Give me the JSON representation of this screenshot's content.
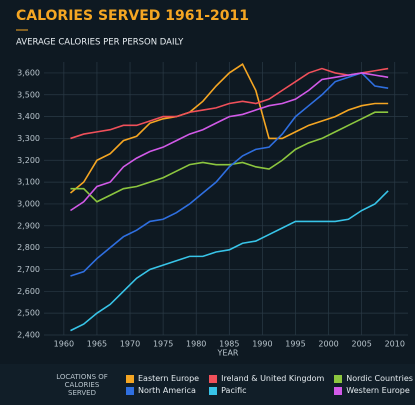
{
  "chart_data": {
    "type": "line",
    "title": "CALORIES SERVED 1961-2011",
    "subtitle": "AVERAGE CALORIES PER PERSON DAILY",
    "x_label": "YEAR",
    "legend_title": "LOCATIONS OF CALORIES SERVED",
    "x": [
      1961,
      1963,
      1965,
      1967,
      1969,
      1971,
      1973,
      1975,
      1977,
      1979,
      1981,
      1983,
      1985,
      1987,
      1989,
      1991,
      1993,
      1995,
      1997,
      1999,
      2001,
      2003,
      2005,
      2007,
      2009
    ],
    "xlim": [
      1957,
      2012
    ],
    "xticks": [
      1960,
      1965,
      1970,
      1975,
      1980,
      1985,
      1990,
      1995,
      2000,
      2005,
      2010
    ],
    "ylim": [
      2400,
      3650
    ],
    "yticks": [
      {
        "value": 2400,
        "label": "2,400"
      },
      {
        "value": 2500,
        "label": "2,500"
      },
      {
        "value": 2600,
        "label": "2,600"
      },
      {
        "value": 2700,
        "label": "2,700"
      },
      {
        "value": 2800,
        "label": "2,800"
      },
      {
        "value": 2900,
        "label": "2,900"
      },
      {
        "value": 3000,
        "label": "3,000"
      },
      {
        "value": 3100,
        "label": "3,100"
      },
      {
        "value": 3200,
        "label": "3,200"
      },
      {
        "value": 3300,
        "label": "3,300"
      },
      {
        "value": 3400,
        "label": "3,400"
      },
      {
        "value": 3500,
        "label": "3,500"
      },
      {
        "value": 3600,
        "label": "3,600"
      }
    ],
    "grid": true,
    "series": [
      {
        "name": "Eastern Europe",
        "color": "#f5a623",
        "values": [
          3050,
          3100,
          3200,
          3230,
          3290,
          3310,
          3370,
          3390,
          3400,
          3420,
          3470,
          3540,
          3600,
          3640,
          3520,
          3300,
          3300,
          3330,
          3360,
          3380,
          3400,
          3430,
          3450,
          3460,
          3460
        ]
      },
      {
        "name": "Ireland & United Kingdom",
        "color": "#f0505a",
        "values": [
          3300,
          3320,
          3330,
          3340,
          3360,
          3360,
          3380,
          3400,
          3400,
          3420,
          3430,
          3440,
          3460,
          3470,
          3460,
          3480,
          3520,
          3560,
          3600,
          3620,
          3600,
          3590,
          3600,
          3610,
          3620
        ]
      },
      {
        "name": "Nordic Countries",
        "color": "#8cc63f",
        "values": [
          3070,
          3070,
          3010,
          3040,
          3070,
          3080,
          3100,
          3120,
          3150,
          3180,
          3190,
          3180,
          3180,
          3190,
          3170,
          3160,
          3200,
          3250,
          3280,
          3300,
          3330,
          3360,
          3390,
          3420,
          3420
        ]
      },
      {
        "name": "North America",
        "color": "#2f6fe0",
        "values": [
          2670,
          2690,
          2750,
          2800,
          2850,
          2880,
          2920,
          2930,
          2960,
          3000,
          3050,
          3100,
          3170,
          3220,
          3250,
          3260,
          3320,
          3400,
          3450,
          3500,
          3560,
          3580,
          3600,
          3540,
          3530
        ]
      },
      {
        "name": "Pacific",
        "color": "#38c4e8",
        "values": [
          2420,
          2450,
          2500,
          2540,
          2600,
          2660,
          2700,
          2720,
          2740,
          2760,
          2760,
          2780,
          2790,
          2820,
          2830,
          2860,
          2890,
          2920,
          2920,
          2920,
          2920,
          2930,
          2970,
          3000,
          3060
        ]
      },
      {
        "name": "Western Europe",
        "color": "#d25ae8",
        "values": [
          2970,
          3010,
          3080,
          3100,
          3170,
          3210,
          3240,
          3260,
          3290,
          3320,
          3340,
          3370,
          3400,
          3410,
          3430,
          3450,
          3460,
          3480,
          3520,
          3570,
          3580,
          3590,
          3600,
          3590,
          3580
        ]
      }
    ]
  }
}
